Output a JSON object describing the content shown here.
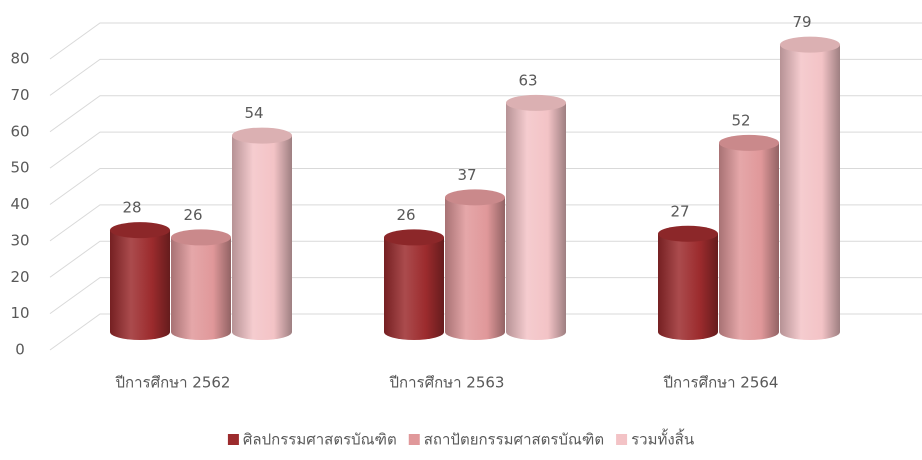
{
  "chart_data": {
    "type": "bar3d",
    "categories": [
      "ปีการศึกษา 2562",
      "ปีการศึกษา 2563",
      "ปีการศึกษา 2564"
    ],
    "series": [
      {
        "name": "ศิลปกรรมศาสตรบัณฑิต",
        "color": "#9c2b2d",
        "values": [
          28,
          26,
          27
        ]
      },
      {
        "name": "สถาปัตยกรรมศาสตรบัณฑิต",
        "color": "#e0989a",
        "values": [
          26,
          37,
          52
        ]
      },
      {
        "name": "รวมทั้งสิ้น",
        "color": "#f3c3c6",
        "values": [
          54,
          63,
          79
        ]
      }
    ],
    "ylim": [
      0,
      80
    ],
    "yticks": [
      0,
      10,
      20,
      30,
      40,
      50,
      60,
      70,
      80
    ],
    "grid": true,
    "legend": "bottom"
  }
}
